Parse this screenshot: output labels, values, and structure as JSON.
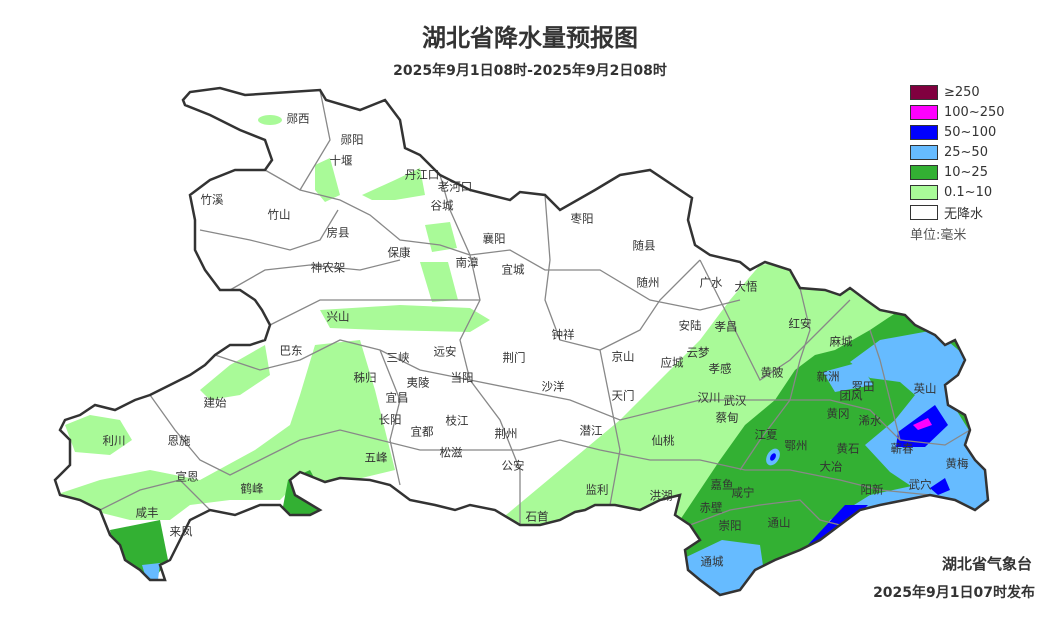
{
  "header": {
    "title": "湖北省降水量预报图",
    "subtitle": "2025年9月1日08时-2025年9月2日08时"
  },
  "legend": {
    "items": [
      {
        "label": "≥250",
        "color": "#80003f"
      },
      {
        "label": "100~250",
        "color": "#ff00ff"
      },
      {
        "label": "50~100",
        "color": "#0000ff"
      },
      {
        "label": "25~50",
        "color": "#66bbff"
      },
      {
        "label": "10~25",
        "color": "#33b033"
      },
      {
        "label": "0.1~10",
        "color": "#a9fa98"
      },
      {
        "label": "无降水",
        "color": "#ffffff"
      }
    ],
    "unit": "单位:毫米"
  },
  "map": {
    "labels": [
      "郧西",
      "郧阳",
      "十堰",
      "丹江口",
      "老河口",
      "谷城",
      "竹溪",
      "竹山",
      "房县",
      "保康",
      "南漳",
      "襄阳",
      "宜城",
      "枣阳",
      "随县",
      "广水",
      "大悟",
      "随州",
      "神农架",
      "兴山",
      "巴东",
      "三峡",
      "远安",
      "当阳",
      "荆门",
      "钟祥",
      "京山",
      "安陆",
      "孝昌",
      "红安",
      "麻城",
      "云梦",
      "应城",
      "孝感",
      "黄陂",
      "新洲",
      "罗田",
      "英山",
      "汉川",
      "武汉",
      "团风",
      "秭归",
      "夷陵",
      "宜昌",
      "长阳",
      "枝江",
      "宜都",
      "松滋",
      "沙洋",
      "天门",
      "蔡甸",
      "黄冈",
      "浠水",
      "荆州",
      "潜江",
      "仙桃",
      "江夏",
      "鄂州",
      "黄石",
      "蕲春",
      "建始",
      "利川",
      "恩施",
      "宣恩",
      "鹤峰",
      "五峰",
      "公安",
      "咸丰",
      "来凤",
      "大冶",
      "黄梅",
      "阳新",
      "武穴",
      "石首",
      "监利",
      "洪湖",
      "嘉鱼",
      "咸宁",
      "赤壁",
      "崇阳",
      "通山",
      "通城"
    ]
  },
  "footer": {
    "agency": "湖北省气象台",
    "issued": "2025年9月1日07时发布"
  }
}
